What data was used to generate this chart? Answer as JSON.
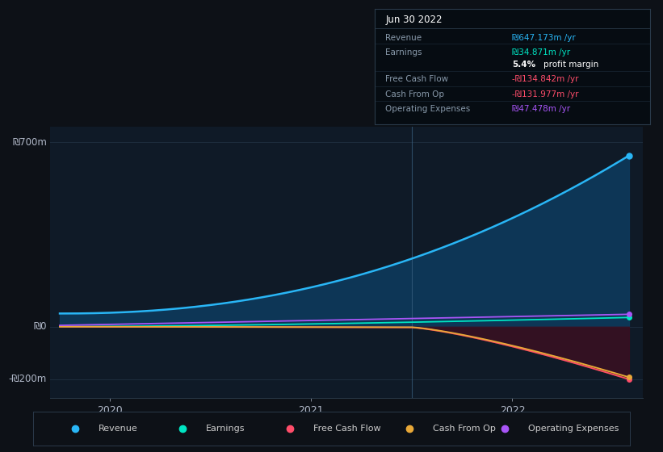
{
  "bg_color": "#0d1117",
  "plot_bg_color": "#0f1a27",
  "grid_color": "#1e2d3d",
  "y_labels": [
    "₪700m",
    "₪0",
    "-₪200m"
  ],
  "y_ticks": [
    700,
    0,
    -200
  ],
  "x_ticks": [
    2020,
    2021,
    2022
  ],
  "ylim": [
    -270,
    760
  ],
  "xlim": [
    2019.7,
    2022.65
  ],
  "divider_x": 2021.5,
  "revenue_color": "#29b6f6",
  "earnings_color": "#00e5c3",
  "fcf_color": "#ff4d6a",
  "cashfromop_color": "#e8a838",
  "opex_color": "#a855f7",
  "fill_revenue_color": "#0d3a5c",
  "fill_neg_color": "#3a1020",
  "fill_between_neg_color": "#5c4510",
  "info_title": "Jun 30 2022",
  "info_rows": [
    {
      "label": "Revenue",
      "value": "₪647.173m /yr",
      "value_color": "#29b6f6"
    },
    {
      "label": "Earnings",
      "value": "₪34.871m /yr",
      "value_color": "#00e5c3"
    },
    {
      "label": "",
      "value": "5.4% profit margin",
      "value_color": "#ffffff",
      "bold_part": "5.4%"
    },
    {
      "label": "Free Cash Flow",
      "value": "-₪134.842m /yr",
      "value_color": "#ff4d6a"
    },
    {
      "label": "Cash From Op",
      "value": "-₪131.977m /yr",
      "value_color": "#ff4d6a"
    },
    {
      "label": "Operating Expenses",
      "value": "₪47.478m /yr",
      "value_color": "#a855f7"
    }
  ],
  "legend_items": [
    {
      "label": "Revenue",
      "color": "#29b6f6"
    },
    {
      "label": "Earnings",
      "color": "#00e5c3"
    },
    {
      "label": "Free Cash Flow",
      "color": "#ff4d6a"
    },
    {
      "label": "Cash From Op",
      "color": "#e8a838"
    },
    {
      "label": "Operating Expenses",
      "color": "#a855f7"
    }
  ]
}
